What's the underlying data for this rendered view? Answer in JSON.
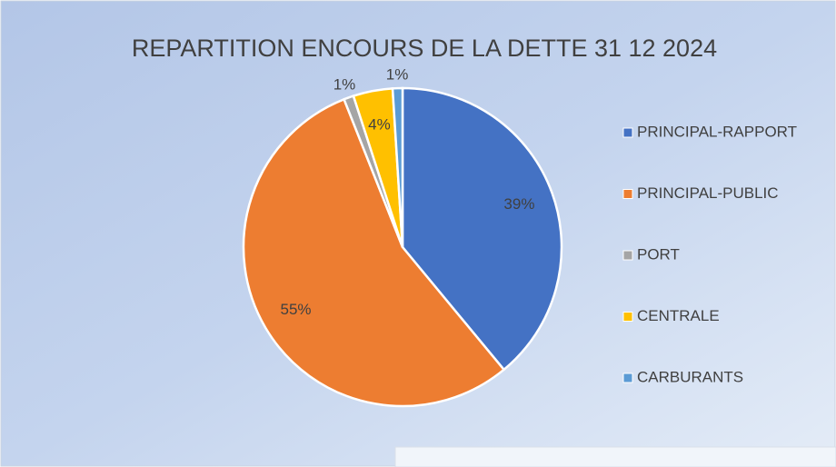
{
  "chart_data": {
    "type": "pie",
    "title": "REPARTITION ENCOURS DE LA DETTE 31 12 2024",
    "categories": [
      "PRINCIPAL-RAPPORT",
      "PRINCIPAL-PUBLIC",
      "PORT",
      "CENTRALE",
      "CARBURANTS"
    ],
    "values": [
      39,
      55,
      1,
      4,
      1
    ],
    "value_labels": [
      "39%",
      "55%",
      "1%",
      "4%",
      "1%"
    ],
    "colors": [
      "#4472c4",
      "#ed7d31",
      "#a5a5a5",
      "#ffc000",
      "#5b9bd5"
    ],
    "legend": "right"
  }
}
